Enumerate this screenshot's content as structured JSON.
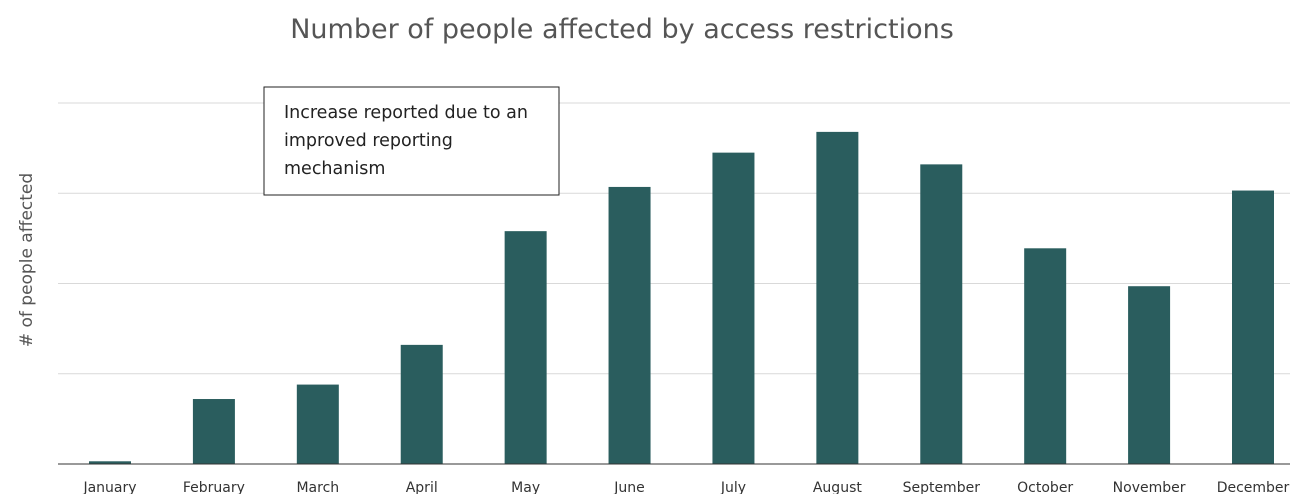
{
  "chart_data": {
    "type": "bar",
    "title": "Number of people affected by access restrictions",
    "xlabel": "",
    "ylabel": "# of people affected",
    "categories": [
      "January",
      "February",
      "March",
      "April",
      "May",
      "June",
      "July",
      "August",
      "September",
      "October",
      "November",
      "December"
    ],
    "values": [
      0.3,
      7.2,
      8.8,
      13.2,
      25.8,
      30.7,
      34.5,
      36.8,
      33.2,
      23.9,
      19.7,
      30.3
    ],
    "ylim": [
      0,
      40
    ],
    "y_gridlines": [
      10,
      20,
      30,
      40
    ],
    "grid": true,
    "y_tick_labels_shown": false,
    "bar_color": "#2a5d5e",
    "annotation": {
      "lines": [
        "Increase reported due to an",
        "improved reporting",
        "mechanism"
      ]
    }
  }
}
